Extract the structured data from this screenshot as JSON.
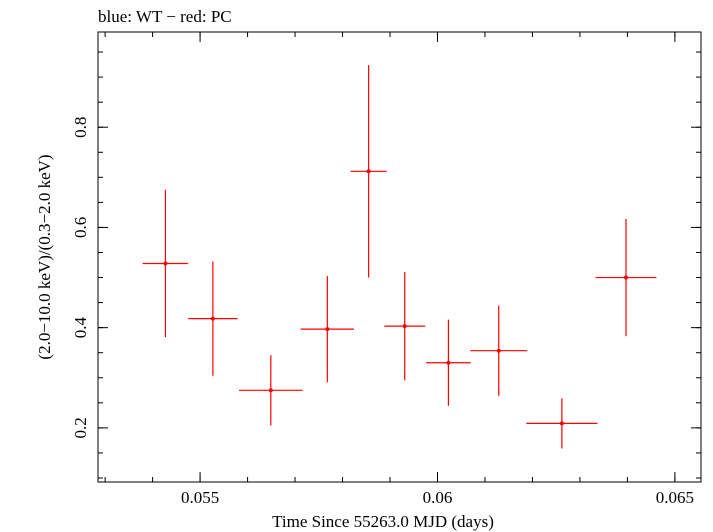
{
  "chart_data": {
    "type": "scatter",
    "title": "blue: WT − red: PC",
    "xlabel": "Time Since 55263.0 MJD (days)",
    "ylabel": "(2.0−10.0 keV)/(0.3−2.0 keV)",
    "xlim": [
      0.05285,
      0.06555
    ],
    "ylim": [
      0.092,
      0.99
    ],
    "x_ticks": [
      {
        "value": 0.055,
        "label": "0.055"
      },
      {
        "value": 0.06,
        "label": "0.06"
      },
      {
        "value": 0.065,
        "label": "0.065"
      }
    ],
    "y_ticks": [
      {
        "value": 0.2,
        "label": "0.2"
      },
      {
        "value": 0.4,
        "label": "0.4"
      },
      {
        "value": 0.6,
        "label": "0.6"
      },
      {
        "value": 0.8,
        "label": "0.8"
      }
    ],
    "x_minor_step": 0.001,
    "y_minor_step": 0.05,
    "grid": false,
    "series": [
      {
        "name": "PC",
        "color": "#ff0000",
        "points": [
          {
            "x": 0.05427,
            "xerr": 0.00048,
            "y": 0.528,
            "yerr_lo": 0.147,
            "yerr_hi": 0.147
          },
          {
            "x": 0.05527,
            "xerr": 0.00052,
            "y": 0.418,
            "yerr_lo": 0.114,
            "yerr_hi": 0.114
          },
          {
            "x": 0.05649,
            "xerr": 0.00067,
            "y": 0.275,
            "yerr_lo": 0.07,
            "yerr_hi": 0.07
          },
          {
            "x": 0.05768,
            "xerr": 0.00056,
            "y": 0.397,
            "yerr_lo": 0.106,
            "yerr_hi": 0.106
          },
          {
            "x": 0.05855,
            "xerr": 0.00038,
            "y": 0.712,
            "yerr_lo": 0.212,
            "yerr_hi": 0.212
          },
          {
            "x": 0.05931,
            "xerr": 0.00043,
            "y": 0.403,
            "yerr_lo": 0.108,
            "yerr_hi": 0.108
          },
          {
            "x": 0.06023,
            "xerr": 0.00047,
            "y": 0.33,
            "yerr_lo": 0.086,
            "yerr_hi": 0.086
          },
          {
            "x": 0.06129,
            "xerr": 0.0006,
            "y": 0.354,
            "yerr_lo": 0.09,
            "yerr_hi": 0.09
          },
          {
            "x": 0.06262,
            "xerr": 0.00075,
            "y": 0.209,
            "yerr_lo": 0.05,
            "yerr_hi": 0.05
          },
          {
            "x": 0.06397,
            "xerr": 0.00064,
            "y": 0.5,
            "yerr_lo": 0.117,
            "yerr_hi": 0.117
          }
        ]
      }
    ]
  }
}
